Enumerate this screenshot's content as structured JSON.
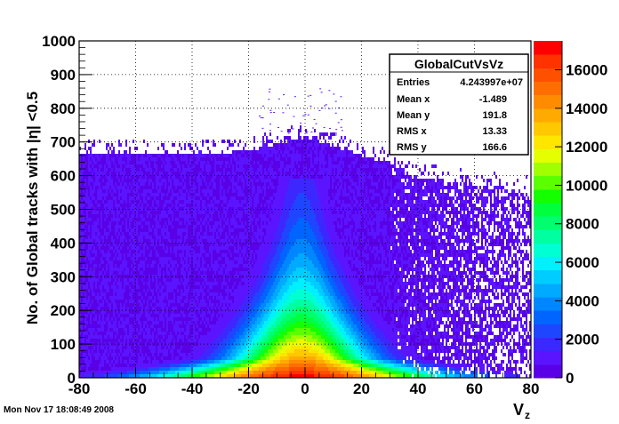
{
  "footer": {
    "timestamp": "Mon Nov 17 18:08:49 2008"
  },
  "stats": {
    "title": "GlobalCutVsVz",
    "rows": [
      {
        "label": "Entries",
        "value": "4.243997e+07"
      },
      {
        "label": "Mean x",
        "value": "-1.489"
      },
      {
        "label": "Mean y",
        "value": "191.8"
      },
      {
        "label": "RMS x",
        "value": "13.33"
      },
      {
        "label": "RMS y",
        "value": "166.6"
      }
    ]
  },
  "chart_data": {
    "type": "heatmap",
    "title": "",
    "xlabel": "V_z",
    "ylabel": "No. of Global tracks with |η| <0.5",
    "xlim": [
      -80,
      80
    ],
    "ylim": [
      0,
      1000
    ],
    "zlim": [
      0,
      17500
    ],
    "x_ticks": [
      -80,
      -60,
      -40,
      -20,
      0,
      20,
      40,
      60,
      80
    ],
    "y_ticks": [
      0,
      100,
      200,
      300,
      400,
      500,
      600,
      700,
      800,
      900,
      1000
    ],
    "z_ticks": [
      0,
      2000,
      4000,
      6000,
      8000,
      10000,
      12000,
      14000,
      16000
    ],
    "grid": true,
    "colorbar": "right",
    "palette": [
      "#5a00e6",
      "#5a14ff",
      "#3c28ff",
      "#1e46ff",
      "#0064ff",
      "#0087ff",
      "#00aaff",
      "#00cdff",
      "#00f0ff",
      "#00ffd2",
      "#00ffa0",
      "#00ff6e",
      "#00ff3c",
      "#14ff00",
      "#5aff00",
      "#a0ff00",
      "#e6ff00",
      "#ffe600",
      "#ffc800",
      "#ffaa00",
      "#ff8c00",
      "#ff6e00",
      "#ff5000",
      "#ff3200",
      "#ff0000"
    ],
    "distribution": {
      "center_x": -1.489,
      "mean_y": 191.8,
      "rms_x": 13.33,
      "rms_y": 166.6,
      "entries": 42439970,
      "background_upper_edge_y": [
        {
          "x": -80,
          "y": 670
        },
        {
          "x": -40,
          "y": 665
        },
        {
          "x": -20,
          "y": 680
        },
        {
          "x": 0,
          "y": 720
        },
        {
          "x": 20,
          "y": 665
        },
        {
          "x": 30,
          "y": 640
        },
        {
          "x": 40,
          "y": 600
        },
        {
          "x": 60,
          "y": 580
        },
        {
          "x": 80,
          "y": 560
        }
      ],
      "core_peak_y": 20,
      "core_upper_edge_y": 600
    }
  }
}
